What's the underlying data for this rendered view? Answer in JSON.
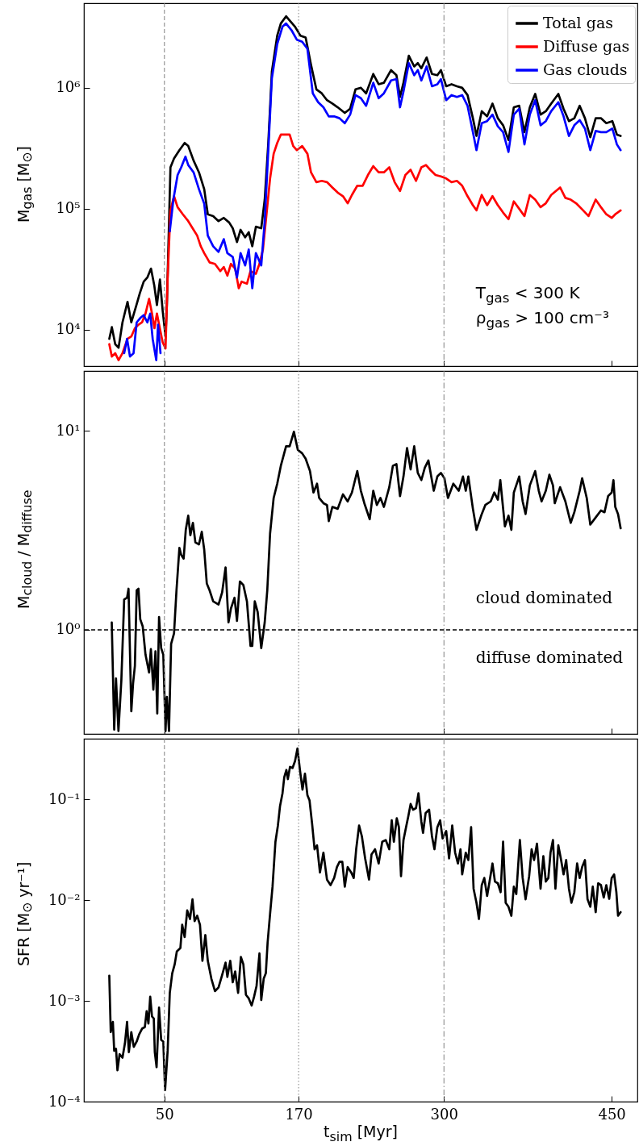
{
  "chart_data": [
    {
      "type": "line",
      "ylabel": "M$_{gas}$ [M$_{⊙}$]",
      "xlim": [
        -22,
        473
      ],
      "xticks": [
        50,
        170,
        300,
        450
      ],
      "ylim": [
        5000,
        5000000
      ],
      "yticks": [
        {
          "value": 10000,
          "label": "10⁴"
        },
        {
          "value": 100000,
          "label": "10⁵"
        },
        {
          "value": 1000000,
          "label": "10⁶"
        }
      ],
      "log": "y",
      "tick_labels": "y",
      "legend": "top right",
      "annotations": [
        "T$_{gas}$ < 300 K",
        "ρ$_{gas}$ > 100 cm⁻³"
      ],
      "ref_lines": [
        {
          "axis": "x",
          "value": 50,
          "color": "#808080",
          "line_style": "dashed"
        },
        {
          "axis": "x",
          "value": 170,
          "color": "#808080",
          "line_style": "dotted"
        },
        {
          "axis": "x",
          "value": 300,
          "color": "#808080",
          "line_style": "dashdot"
        }
      ],
      "series": [
        {
          "name": "Total gas",
          "color": "#000000",
          "x": [
            0.7,
            3,
            6,
            9,
            12.5,
            17,
            20.4,
            25,
            28,
            31.5,
            34.7,
            38,
            41,
            43.3,
            46,
            48.4,
            51,
            52.2,
            55.4,
            58.6,
            63.4,
            68.1,
            71.3,
            76.1,
            80.9,
            85.6,
            88.8,
            93.6,
            98.4,
            103.1,
            107.9,
            111.1,
            114.9,
            118.1,
            122.2,
            125.4,
            128.6,
            131.8,
            136.6,
            139.7,
            142.9,
            146.1,
            150.9,
            154.1,
            158.8,
            162,
            166.8,
            171.6,
            176.3,
            181.1,
            185.9,
            190.7,
            195.4,
            200.2,
            205,
            211.3,
            216.1,
            220.9,
            225.7,
            230.4,
            236.8,
            241.6,
            246.3,
            252.7,
            257.5,
            260.7,
            263.8,
            268.6,
            273.4,
            276.6,
            279.8,
            284.5,
            289.3,
            294.1,
            297.3,
            302,
            306.8,
            311.6,
            316.3,
            321.1,
            325.9,
            329.1,
            333.8,
            338.6,
            343.4,
            348.2,
            352.9,
            357.7,
            362.5,
            367.3,
            372,
            376.8,
            381.6,
            386.4,
            391.1,
            395.9,
            402.3,
            407,
            411.8,
            416.6,
            421.4,
            426.1,
            430.9,
            435.7,
            440.4,
            445.2,
            450.6,
            454.7,
            458
          ],
          "values": [
            8400,
            10500,
            7600,
            7100,
            11500,
            17000,
            11500,
            16000,
            20000,
            25000,
            27000,
            32000,
            23000,
            16000,
            26000,
            14500,
            8800,
            16000,
            220000,
            260000,
            305000,
            350000,
            330000,
            250000,
            200000,
            145000,
            90000,
            87000,
            79000,
            84000,
            77000,
            69000,
            53000,
            67000,
            58000,
            64000,
            49000,
            71000,
            69000,
            119000,
            350000,
            1360000,
            2700000,
            3400000,
            3900000,
            3600000,
            3200000,
            2700000,
            2600000,
            1550000,
            970000,
            900000,
            790000,
            740000,
            690000,
            620000,
            670000,
            970000,
            1000000,
            900000,
            1300000,
            1070000,
            1100000,
            1400000,
            1270000,
            840000,
            1100000,
            1840000,
            1500000,
            1600000,
            1450000,
            1780000,
            1300000,
            1270000,
            1400000,
            1030000,
            1070000,
            1030000,
            1000000,
            870000,
            560000,
            400000,
            640000,
            580000,
            740000,
            560000,
            490000,
            370000,
            690000,
            710000,
            430000,
            690000,
            890000,
            600000,
            640000,
            740000,
            890000,
            670000,
            530000,
            560000,
            710000,
            560000,
            390000,
            560000,
            560000,
            510000,
            530000,
            410000,
            400000
          ]
        },
        {
          "name": "Diffuse gas",
          "color": "#ff0000",
          "x": [
            0.7,
            3,
            6,
            9,
            12.5,
            17,
            20.4,
            23.6,
            26.8,
            30,
            33.1,
            36.3,
            38.9,
            41.1,
            43.3,
            45.9,
            48.4,
            51,
            52.9,
            55.4,
            58.6,
            61.8,
            66.5,
            71.3,
            76.1,
            79.3,
            82.5,
            85.6,
            90.4,
            95.2,
            100,
            103.1,
            106.3,
            109.5,
            113.3,
            116.5,
            119,
            123.8,
            127,
            131.8,
            135,
            138.1,
            141.3,
            144.5,
            147.7,
            150.9,
            154.1,
            158.8,
            162,
            165.2,
            168.4,
            173.2,
            177.9,
            181.1,
            185.9,
            190.7,
            195.4,
            200.2,
            205,
            209.7,
            213.9,
            217.7,
            222.5,
            227.3,
            232,
            236.8,
            241.6,
            246.3,
            251.1,
            255.9,
            260.7,
            265.5,
            270.2,
            275,
            279.8,
            283.9,
            287.7,
            292.5,
            297.3,
            302,
            306.8,
            311.6,
            316.3,
            321.1,
            325.9,
            329.1,
            333.8,
            338.6,
            343.4,
            348.2,
            352.9,
            357.7,
            362.5,
            367.3,
            372,
            376.8,
            381.6,
            386.4,
            391.1,
            395.9,
            403.9,
            408.6,
            413.4,
            418.2,
            424.5,
            429.3,
            435.7,
            440.4,
            445.2,
            450,
            453.2,
            458
          ],
          "values": [
            7600,
            6000,
            6400,
            5600,
            6400,
            8400,
            8800,
            10300,
            11000,
            11500,
            13600,
            18000,
            13600,
            10300,
            13600,
            10300,
            7900,
            7000,
            27000,
            97000,
            127000,
            103000,
            90000,
            79000,
            67000,
            60000,
            49000,
            43000,
            36000,
            35000,
            30500,
            33000,
            28000,
            35000,
            32000,
            22000,
            25000,
            24000,
            30500,
            29000,
            35000,
            46000,
            90000,
            178000,
            285000,
            350000,
            410000,
            410000,
            410000,
            330000,
            305000,
            330000,
            285000,
            200000,
            166000,
            170000,
            166000,
            150000,
            136000,
            127000,
            111000,
            130000,
            155000,
            155000,
            190000,
            225000,
            200000,
            200000,
            220000,
            166000,
            140000,
            190000,
            210000,
            170000,
            220000,
            230000,
            210000,
            190000,
            185000,
            178000,
            166000,
            170000,
            155000,
            127000,
            107000,
            97000,
            130000,
            107000,
            127000,
            107000,
            93000,
            82000,
            115000,
            100000,
            87000,
            130000,
            119000,
            103000,
            111000,
            130000,
            150000,
            123000,
            119000,
            111000,
            97000,
            87000,
            119000,
            103000,
            90000,
            84000,
            90000,
            97000
          ]
        },
        {
          "name": "Gas clouds",
          "color": "#0000ff",
          "x": [
            14,
            16.6,
            19.2,
            22.4,
            25.2,
            28.4,
            31.5,
            34.7,
            37.3,
            39.5,
            42.7,
            44.3,
            46.5,
            48.4,
            51,
            52.9,
            54.8,
            58,
            61.8,
            65,
            68.8,
            71.3,
            76.1,
            80.9,
            85.6,
            88.8,
            93.6,
            98.4,
            103.1,
            106.3,
            111.1,
            114.9,
            118.1,
            122.2,
            125.4,
            128.6,
            131.8,
            136.6,
            139.7,
            142.9,
            146.1,
            150.9,
            155.6,
            158.8,
            163.6,
            168.4,
            173.2,
            177.9,
            182.7,
            187.5,
            192.2,
            197,
            201.8,
            206.6,
            211.3,
            216.1,
            220.9,
            225.7,
            230.4,
            236.8,
            241.6,
            246.3,
            252.7,
            257.5,
            260.7,
            263.8,
            268.6,
            273.4,
            276.6,
            279.8,
            284.5,
            289.3,
            294.1,
            297.3,
            302,
            306.8,
            311.6,
            316.3,
            321.1,
            325.9,
            329.1,
            333.8,
            338.6,
            343.4,
            348.2,
            352.9,
            357.7,
            362.5,
            367.3,
            372,
            376.8,
            381.6,
            386.4,
            391.1,
            395.9,
            402.3,
            407,
            411.8,
            416.6,
            421.4,
            426.1,
            430.9,
            435.7,
            440.4,
            445.2,
            450.6,
            454.7,
            458
          ],
          "values": [
            6400,
            8400,
            6000,
            6400,
            11500,
            12500,
            13200,
            11500,
            13600,
            8400,
            5600,
            11000,
            6400,
            null,
            null,
            null,
            65000,
            119000,
            190000,
            220000,
            270000,
            230000,
            200000,
            145000,
            110000,
            60000,
            49000,
            44000,
            56000,
            43000,
            40000,
            27000,
            43000,
            34000,
            46000,
            22000,
            43000,
            34000,
            79000,
            305000,
            1200000,
            2300000,
            3200000,
            3400000,
            3000000,
            2500000,
            2400000,
            2100000,
            900000,
            760000,
            690000,
            580000,
            580000,
            560000,
            510000,
            600000,
            870000,
            820000,
            710000,
            1100000,
            820000,
            900000,
            1150000,
            1180000,
            690000,
            930000,
            1600000,
            1270000,
            1400000,
            1150000,
            1500000,
            1030000,
            1070000,
            1180000,
            790000,
            870000,
            840000,
            870000,
            710000,
            430000,
            305000,
            510000,
            530000,
            600000,
            480000,
            430000,
            295000,
            600000,
            670000,
            340000,
            600000,
            790000,
            490000,
            530000,
            640000,
            760000,
            580000,
            400000,
            490000,
            540000,
            460000,
            305000,
            440000,
            430000,
            430000,
            460000,
            340000,
            305000
          ]
        }
      ]
    },
    {
      "type": "line",
      "ylabel": "M$_{cloud}$ / M$_{diffuse}$",
      "xlim": [
        -22,
        473
      ],
      "xticks": [
        50,
        170,
        300,
        450
      ],
      "ylim": [
        0.3,
        20
      ],
      "yticks": [
        {
          "value": 1,
          "label": "10⁰"
        },
        {
          "value": 10,
          "label": "10¹"
        }
      ],
      "log": "y",
      "tick_labels": "y",
      "annotations": [
        "cloud dominated",
        "diffuse dominated"
      ],
      "ref_lines": [
        {
          "axis": "x",
          "value": 50,
          "color": "#808080",
          "line_style": "dashed"
        },
        {
          "axis": "x",
          "value": 170,
          "color": "#808080",
          "line_style": "dotted"
        },
        {
          "axis": "x",
          "value": 300,
          "color": "#808080",
          "line_style": "dashdot"
        },
        {
          "axis": "y",
          "value": 1,
          "color": "#000000",
          "line_style": "dashed"
        }
      ],
      "series": [
        {
          "color": "#000000",
          "x": [
            2.9,
            5.1,
            6.7,
            8.9,
            11.5,
            14,
            16.6,
            17.9,
            20.4,
            22,
            23.6,
            25.2,
            26.8,
            28.4,
            30.6,
            33.1,
            36.3,
            37.9,
            40.1,
            42,
            43.6,
            45.2,
            47.1,
            49,
            51,
            52.2,
            54.1,
            56,
            58.6,
            60.8,
            63.4,
            65,
            67.2,
            69.1,
            71.3,
            73.2,
            75.5,
            77.7,
            80.9,
            83.4,
            85.6,
            87.9,
            90.4,
            93.6,
            98.4,
            101.6,
            104.7,
            107.3,
            109.5,
            112.7,
            114.9,
            117.5,
            120.6,
            123.8,
            127,
            128.6,
            130.8,
            133.4,
            136.6,
            139.7,
            142,
            144.5,
            147.7,
            150.9,
            154.1,
            158.8,
            162,
            165.8,
            169.3,
            173.2,
            176.3,
            180.2,
            183.3,
            186.5,
            188.4,
            192.2,
            195.4,
            197,
            200.2,
            205,
            209.7,
            213.9,
            217.7,
            222.5,
            225.7,
            228.8,
            233.6,
            236.8,
            240,
            243.2,
            246.3,
            251.1,
            254.3,
            257.5,
            260.7,
            263.8,
            267,
            270.2,
            273.4,
            276.6,
            279.8,
            282.9,
            286.1,
            290.9,
            294.1,
            297.3,
            300.4,
            303.6,
            308.4,
            313.2,
            317,
            319.5,
            321.8,
            325.9,
            329.1,
            333.8,
            337,
            341.8,
            345,
            348.2,
            350.4,
            354.5,
            357.7,
            360.3,
            362.5,
            367.3,
            370.4,
            373,
            376.8,
            381.6,
            384.8,
            387.3,
            391.1,
            394.3,
            397.5,
            399.1,
            403.9,
            408.6,
            413.4,
            416.6,
            421.4,
            423.6,
            427.7,
            430.9,
            435.7,
            440.4,
            443.6,
            446.8,
            450,
            451.6,
            453.2,
            455.7,
            458
          ],
          "values": [
            1.09,
            0.315,
            0.57,
            0.31,
            0.56,
            1.42,
            1.45,
            1.61,
            0.39,
            0.54,
            0.66,
            1.58,
            1.61,
            1.13,
            1.04,
            0.75,
            0.61,
            0.8,
            0.5,
            0.78,
            0.38,
            1.16,
            0.81,
            0.75,
            0.31,
            0.46,
            0.31,
            0.85,
            0.96,
            1.58,
            2.58,
            2.38,
            2.28,
            3.18,
            3.75,
            2.99,
            3.45,
            2.75,
            2.69,
            3.11,
            2.53,
            1.71,
            1.58,
            1.39,
            1.34,
            1.54,
            2.06,
            1.09,
            1.28,
            1.45,
            1.11,
            1.75,
            1.68,
            1.39,
            0.83,
            0.83,
            1.39,
            1.23,
            0.81,
            1.09,
            1.58,
            3.05,
            4.6,
            5.43,
            6.67,
            8.37,
            8.37,
            9.9,
            8.03,
            7.71,
            7.25,
            6.28,
            4.9,
            5.43,
            4.6,
            4.33,
            4.24,
            3.52,
            4.15,
            4.06,
            4.8,
            4.42,
            4.9,
            6.28,
            5.0,
            4.33,
            3.6,
            5.0,
            4.24,
            4.6,
            4.15,
            5.21,
            6.67,
            6.81,
            4.7,
            5.9,
            8.2,
            6.4,
            8.37,
            6.15,
            5.66,
            6.54,
            7.1,
            5.0,
            5.9,
            6.15,
            5.78,
            4.6,
            5.43,
            5.0,
            5.9,
            5.0,
            5.9,
            4.06,
            3.18,
            3.82,
            4.24,
            4.42,
            4.9,
            4.51,
            5.66,
            3.31,
            3.75,
            3.18,
            4.9,
            5.9,
            4.42,
            3.82,
            5.32,
            6.28,
            5.0,
            4.42,
            5.0,
            6.02,
            5.32,
            4.33,
            5.21,
            4.42,
            3.45,
            3.9,
            5.0,
            5.78,
            4.6,
            3.38,
            3.67,
            3.98,
            3.9,
            4.7,
            4.9,
            5.66,
            4.15,
            3.82,
            3.24
          ]
        }
      ]
    },
    {
      "type": "line",
      "ylabel": "SFR [M$_{⊙}$ yr⁻¹]",
      "xlabel": "t$_{sim}$ [Myr]",
      "xlim": [
        -22,
        473
      ],
      "xticks": [
        50,
        170,
        300,
        450
      ],
      "ylim": [
        0.0001,
        0.4
      ],
      "yticks": [
        {
          "value": 0.0001,
          "label": "10⁻⁴"
        },
        {
          "value": 0.001,
          "label": "10⁻³"
        },
        {
          "value": 0.01,
          "label": "10⁻²"
        },
        {
          "value": 0.1,
          "label": "10⁻¹"
        }
      ],
      "log": "y",
      "ref_lines": [
        {
          "axis": "x",
          "value": 50,
          "color": "#808080",
          "line_style": "dashed"
        },
        {
          "axis": "x",
          "value": 170,
          "color": "#808080",
          "line_style": "dotted"
        },
        {
          "axis": "x",
          "value": 300,
          "color": "#808080",
          "line_style": "dashdot"
        }
      ],
      "series": [
        {
          "color": "#000000",
          "x": [
            0.7,
            2,
            3.9,
            5.1,
            6.7,
            8,
            9.9,
            12.5,
            14.7,
            16.6,
            18.2,
            20.4,
            22.6,
            25.2,
            27.4,
            30,
            32.5,
            34.1,
            35.7,
            37.3,
            38.9,
            40.5,
            41.4,
            43,
            45.2,
            47.1,
            49,
            50.6,
            52.9,
            54.8,
            57,
            59.2,
            61.1,
            64.3,
            65.9,
            68.1,
            70.4,
            72.9,
            75.1,
            77,
            79.3,
            81.8,
            84,
            86.6,
            88.8,
            92,
            95.2,
            98.4,
            101.6,
            104.7,
            106.3,
            108.9,
            111.1,
            113.3,
            115.9,
            118.4,
            120.6,
            122.9,
            125.4,
            128,
            130.2,
            132.4,
            135,
            136.6,
            138.8,
            140.7,
            142.3,
            144.5,
            146.7,
            149.3,
            151.5,
            153.4,
            155.6,
            157.2,
            159.1,
            160.4,
            162.3,
            164.6,
            166.8,
            169,
            171.2,
            173.5,
            175.7,
            177.9,
            179.8,
            182.1,
            184.3,
            186.5,
            189.1,
            192.2,
            195.4,
            198.6,
            201.8,
            204.3,
            206.6,
            209.1,
            211.3,
            213.9,
            217.1,
            219.3,
            221.5,
            224.1,
            226.6,
            229.5,
            233,
            235.2,
            238.4,
            241.6,
            244.8,
            247.9,
            251.1,
            253.3,
            255.2,
            257.8,
            259.7,
            261.6,
            263.8,
            266.1,
            268,
            270.2,
            272.4,
            275,
            277.2,
            279.8,
            281.3,
            283.6,
            286.7,
            289.3,
            291.5,
            294.1,
            296.6,
            298.8,
            302,
            304.6,
            307.4,
            310,
            312.5,
            314.8,
            316.3,
            319.5,
            321.8,
            324.3,
            326.5,
            329.1,
            331.3,
            333.8,
            336.1,
            338.6,
            340.8,
            343.4,
            345.6,
            348.2,
            350.7,
            352.9,
            355.2,
            357.7,
            360.3,
            362.5,
            364.7,
            367.9,
            370.4,
            373,
            376.2,
            378.4,
            380.6,
            383.2,
            386.4,
            388.9,
            391.1,
            393.4,
            395.3,
            397.5,
            399.7,
            402.3,
            404.5,
            407,
            409.3,
            411.8,
            414,
            416.6,
            419.1,
            421.4,
            423.6,
            426.1,
            428.4,
            430.9,
            433.1,
            435.7,
            437.9,
            440.4,
            442.9,
            445.2,
            447.8,
            450,
            452.2,
            454.2,
            455.7,
            458
          ],
          "values": [
            0.00178,
            0.00049,
            0.00062,
            0.00032,
            0.000335,
            0.000205,
            0.000296,
            0.000273,
            0.00038,
            0.00062,
            0.00031,
            0.00049,
            0.00035,
            0.000395,
            0.000465,
            0.00053,
            0.00055,
            0.00079,
            0.000595,
            0.0011,
            0.0007,
            0.00067,
            0.00031,
            0.00022,
            0.00086,
            0.00041,
            0.000395,
            0.00013,
            0.00032,
            0.0012,
            0.00188,
            0.00231,
            0.0031,
            0.00335,
            0.0057,
            0.0043,
            0.0079,
            0.0065,
            0.0102,
            0.0062,
            0.007,
            0.0057,
            0.0025,
            0.0045,
            0.0025,
            0.00166,
            0.00125,
            0.00136,
            0.0018,
            0.0024,
            0.00173,
            0.0025,
            0.00153,
            0.00196,
            0.0012,
            0.00273,
            0.00231,
            0.00115,
            0.00106,
            0.0009,
            0.0011,
            0.00141,
            0.00296,
            0.00102,
            0.00166,
            0.00188,
            0.0038,
            0.0073,
            0.0136,
            0.038,
            0.055,
            0.086,
            0.115,
            0.166,
            0.196,
            0.159,
            0.21,
            0.205,
            0.24,
            0.32,
            0.196,
            0.125,
            0.18,
            0.11,
            0.0975,
            0.057,
            0.032,
            0.035,
            0.0188,
            0.0296,
            0.016,
            0.0141,
            0.0166,
            0.0213,
            0.024,
            0.024,
            0.0136,
            0.0213,
            0.0188,
            0.0166,
            0.032,
            0.055,
            0.043,
            0.026,
            0.016,
            0.0284,
            0.032,
            0.0231,
            0.038,
            0.0395,
            0.032,
            0.062,
            0.038,
            0.065,
            0.053,
            0.0173,
            0.0395,
            0.053,
            0.067,
            0.09,
            0.079,
            0.082,
            0.115,
            0.06,
            0.0465,
            0.073,
            0.079,
            0.043,
            0.032,
            0.053,
            0.062,
            0.041,
            0.0485,
            0.026,
            0.055,
            0.0296,
            0.0231,
            0.032,
            0.018,
            0.0296,
            0.025,
            0.053,
            0.013,
            0.0094,
            0.0065,
            0.0141,
            0.0166,
            0.011,
            0.0153,
            0.0231,
            0.0153,
            0.0147,
            0.012,
            0.038,
            0.0094,
            0.0086,
            0.007,
            0.0136,
            0.0115,
            0.0395,
            0.0166,
            0.0102,
            0.0173,
            0.032,
            0.025,
            0.0364,
            0.013,
            0.0273,
            0.0153,
            0.0166,
            0.0296,
            0.0395,
            0.013,
            0.035,
            0.026,
            0.018,
            0.025,
            0.013,
            0.0094,
            0.012,
            0.0231,
            0.0166,
            0.0213,
            0.025,
            0.0102,
            0.0086,
            0.0136,
            0.0076,
            0.0147,
            0.0141,
            0.0106,
            0.0141,
            0.0103,
            0.0166,
            0.018,
            0.012,
            0.007,
            0.0076
          ]
        }
      ]
    }
  ]
}
